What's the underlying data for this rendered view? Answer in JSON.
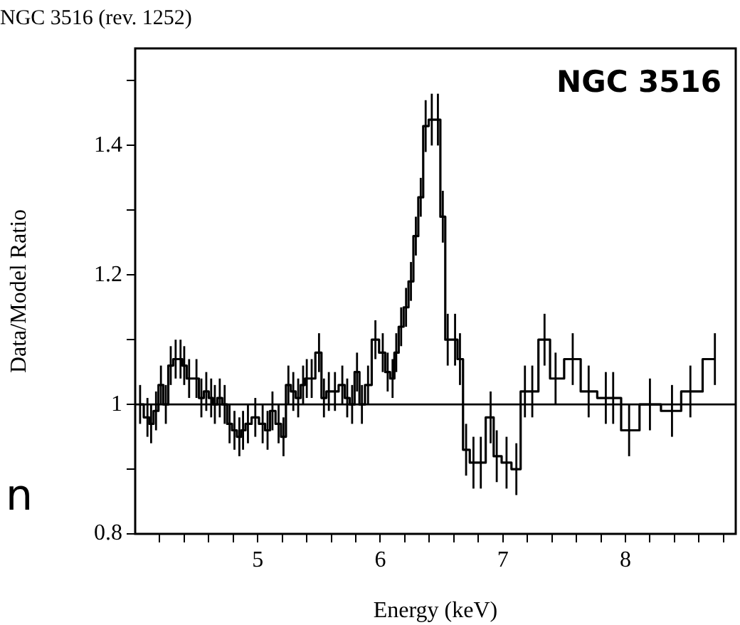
{
  "chart_data": {
    "type": "step",
    "title": "NGC 3516 (rev. 1252)",
    "xlabel": "Energy (keV)",
    "ylabel": "Data/Model Ratio",
    "annotations": [
      "NGC 3516",
      "n"
    ],
    "x": [
      4.04,
      4.1,
      4.13,
      4.17,
      4.21,
      4.25,
      4.29,
      4.33,
      4.37,
      4.4,
      4.44,
      4.5,
      4.54,
      4.58,
      4.62,
      4.65,
      4.69,
      4.73,
      4.77,
      4.81,
      4.85,
      4.88,
      4.92,
      4.98,
      5.04,
      5.08,
      5.12,
      5.17,
      5.21,
      5.25,
      5.29,
      5.33,
      5.37,
      5.4,
      5.44,
      5.5,
      5.54,
      5.58,
      5.63,
      5.69,
      5.73,
      5.77,
      5.81,
      5.85,
      5.9,
      5.96,
      6.02,
      6.06,
      6.1,
      6.13,
      6.17,
      6.21,
      6.25,
      6.29,
      6.33,
      6.37,
      6.42,
      6.47,
      6.51,
      6.55,
      6.61,
      6.65,
      6.7,
      6.76,
      6.82,
      6.9,
      6.95,
      7.03,
      7.11,
      7.18,
      7.24,
      7.34,
      7.43,
      7.57,
      7.7,
      7.84,
      7.9,
      8.03,
      8.2,
      8.38,
      8.53,
      8.73
    ],
    "values": [
      1.0,
      0.98,
      0.97,
      0.99,
      1.03,
      1.0,
      1.06,
      1.07,
      1.07,
      1.06,
      1.04,
      1.04,
      1.01,
      1.02,
      1.01,
      1.0,
      1.01,
      1.0,
      0.97,
      0.96,
      0.95,
      0.96,
      0.97,
      0.98,
      0.97,
      0.96,
      0.99,
      0.97,
      0.95,
      1.03,
      1.02,
      1.01,
      1.03,
      1.04,
      1.04,
      1.08,
      1.01,
      1.02,
      1.02,
      1.03,
      1.01,
      1.0,
      1.05,
      1.0,
      1.03,
      1.1,
      1.08,
      1.05,
      1.04,
      1.08,
      1.12,
      1.15,
      1.19,
      1.26,
      1.32,
      1.43,
      1.44,
      1.44,
      1.29,
      1.1,
      1.1,
      1.07,
      0.93,
      0.91,
      0.91,
      0.98,
      0.92,
      0.91,
      0.9,
      1.02,
      1.02,
      1.1,
      1.04,
      1.07,
      1.02,
      1.01,
      1.01,
      0.96,
      1.0,
      0.99,
      1.02,
      1.07
    ],
    "errors": [
      0.03,
      0.03,
      0.03,
      0.03,
      0.03,
      0.03,
      0.03,
      0.03,
      0.03,
      0.03,
      0.03,
      0.03,
      0.03,
      0.03,
      0.03,
      0.03,
      0.03,
      0.03,
      0.03,
      0.03,
      0.03,
      0.03,
      0.03,
      0.03,
      0.03,
      0.03,
      0.03,
      0.03,
      0.03,
      0.03,
      0.03,
      0.03,
      0.03,
      0.03,
      0.03,
      0.03,
      0.03,
      0.03,
      0.03,
      0.03,
      0.03,
      0.03,
      0.03,
      0.03,
      0.03,
      0.03,
      0.03,
      0.03,
      0.03,
      0.03,
      0.03,
      0.03,
      0.03,
      0.03,
      0.03,
      0.04,
      0.04,
      0.04,
      0.04,
      0.04,
      0.04,
      0.04,
      0.04,
      0.04,
      0.04,
      0.04,
      0.04,
      0.04,
      0.04,
      0.04,
      0.04,
      0.04,
      0.04,
      0.04,
      0.04,
      0.04,
      0.04,
      0.04,
      0.04,
      0.04,
      0.04,
      0.04
    ],
    "color": "#000000",
    "marker": "none",
    "line_style": "solid",
    "grid": false,
    "legend": false,
    "ref_lines": [
      {
        "axis": "y",
        "value": 1,
        "color": "#000000"
      }
    ],
    "xlim": [
      4,
      8.9
    ],
    "ylim": [
      0.8,
      1.55
    ],
    "xticks": [
      {
        "value": 4.2,
        "label": null
      },
      {
        "value": 4.4,
        "label": null
      },
      {
        "value": 4.6,
        "label": null
      },
      {
        "value": 4.8,
        "label": null
      },
      5,
      {
        "value": 5.2,
        "label": null
      },
      {
        "value": 5.4,
        "label": null
      },
      {
        "value": 5.6,
        "label": null
      },
      {
        "value": 5.8,
        "label": null
      },
      6,
      {
        "value": 6.2,
        "label": null
      },
      {
        "value": 6.4,
        "label": null
      },
      {
        "value": 6.6,
        "label": null
      },
      {
        "value": 6.8,
        "label": null
      },
      7,
      {
        "value": 7.2,
        "label": null
      },
      {
        "value": 7.4,
        "label": null
      },
      {
        "value": 7.6,
        "label": null
      },
      {
        "value": 7.8,
        "label": null
      },
      8,
      {
        "value": 8.2,
        "label": null
      },
      {
        "value": 8.4,
        "label": null
      },
      {
        "value": 8.6,
        "label": null
      },
      {
        "value": 8.8,
        "label": null
      }
    ],
    "yticks": [
      0.8,
      {
        "value": 0.9,
        "label": null
      },
      1,
      {
        "value": 1.1,
        "label": null
      },
      1.2,
      {
        "value": 1.3,
        "label": null
      },
      1.4,
      {
        "value": 1.5,
        "label": null
      }
    ]
  }
}
